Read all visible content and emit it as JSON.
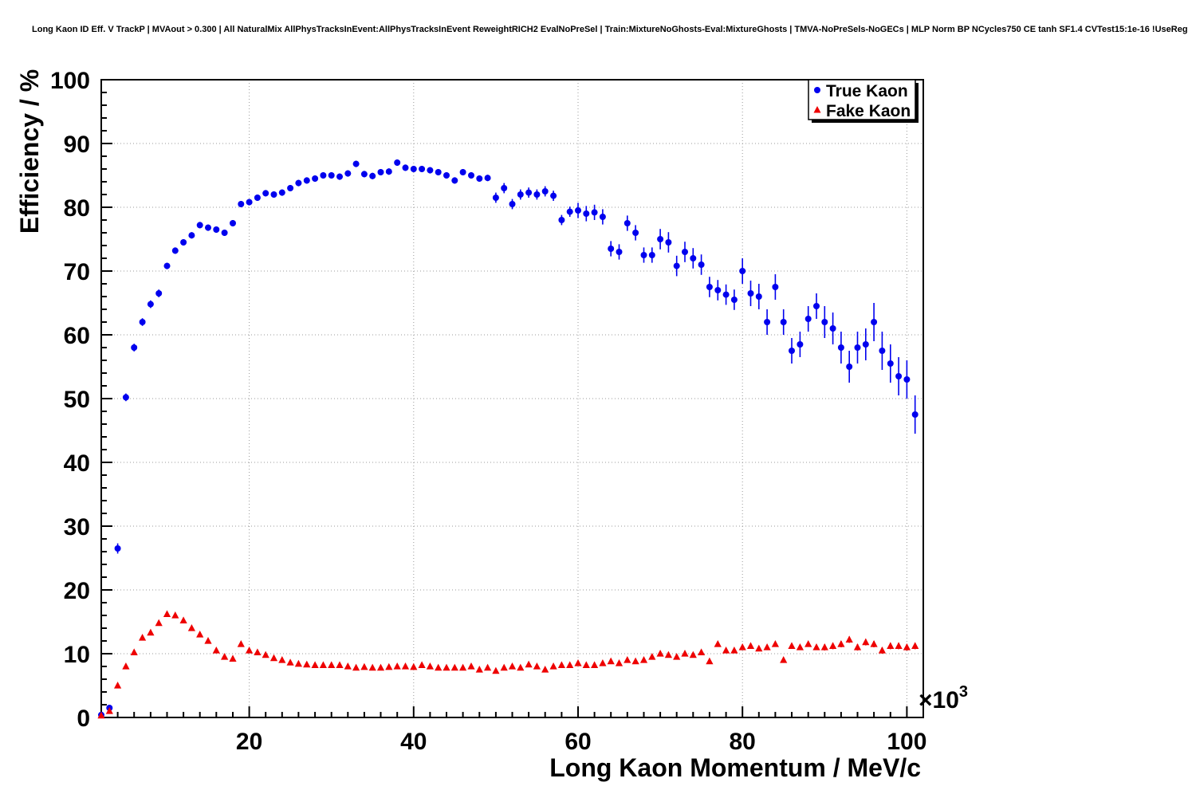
{
  "title": "Long Kaon ID Eff. V TrackP | MVAout > 0.300 | All NaturalMix AllPhysTracksInEvent:AllPhysTracksInEvent ReweightRICH2 EvalNoPreSel | Train:MixtureNoGhosts-Eval:MixtureGhosts | TMVA-NoPreSels-NoGECs | MLP Norm BP NCycles750 CE tanh SF1.4 CVTest15:1e-16 !UseReg",
  "chart_data": {
    "type": "scatter",
    "xlabel": "Long Kaon Momentum / MeV/c",
    "ylabel": "Efficiency / %",
    "x_exponent_label": "×10",
    "x_exponent": "3",
    "xlim": [
      2,
      102
    ],
    "ylim": [
      0,
      100
    ],
    "xticks": [
      20,
      40,
      60,
      80,
      100
    ],
    "yticks": [
      0,
      10,
      20,
      30,
      40,
      50,
      60,
      70,
      80,
      90,
      100
    ],
    "grid": "dotted",
    "legend_position": "top-right",
    "x": [
      2,
      3,
      4,
      5,
      6,
      7,
      8,
      9,
      10,
      11,
      12,
      13,
      14,
      15,
      16,
      17,
      18,
      19,
      20,
      21,
      22,
      23,
      24,
      25,
      26,
      27,
      28,
      29,
      30,
      31,
      32,
      33,
      34,
      35,
      36,
      37,
      38,
      39,
      40,
      41,
      42,
      43,
      44,
      45,
      46,
      47,
      48,
      49,
      50,
      51,
      52,
      53,
      54,
      55,
      56,
      57,
      58,
      59,
      60,
      61,
      62,
      63,
      64,
      65,
      66,
      67,
      68,
      69,
      70,
      71,
      72,
      73,
      74,
      75,
      76,
      77,
      78,
      79,
      80,
      81,
      82,
      83,
      84,
      85,
      86,
      87,
      88,
      89,
      90,
      91,
      92,
      93,
      94,
      95,
      96,
      97,
      98,
      99,
      100,
      101
    ],
    "series": [
      {
        "name": "True Kaon",
        "marker": "circle",
        "color": "#0000ee",
        "values": [
          0.4,
          1.5,
          26.5,
          50.2,
          58.0,
          62.0,
          64.8,
          66.5,
          70.8,
          73.2,
          74.5,
          75.6,
          77.2,
          76.8,
          76.5,
          76.0,
          77.5,
          80.5,
          80.8,
          81.5,
          82.2,
          82.0,
          82.3,
          83.0,
          83.8,
          84.2,
          84.5,
          85.0,
          85.0,
          84.8,
          85.3,
          86.8,
          85.2,
          84.9,
          85.5,
          85.6,
          87.0,
          86.2,
          86.0,
          86.0,
          85.8,
          85.5,
          85.0,
          84.2,
          85.5,
          85.0,
          84.5,
          84.6,
          81.5,
          83.0,
          80.5,
          82.0,
          82.3,
          82.0,
          82.5,
          81.8,
          78.0,
          79.3,
          79.5,
          79.0,
          79.2,
          78.5,
          73.5,
          73.0,
          77.5,
          76.0,
          72.5,
          72.5,
          75.0,
          74.5,
          70.8,
          73.0,
          72.0,
          71.0,
          67.5,
          67.0,
          66.3,
          65.5,
          70.0,
          66.5,
          66.0,
          62.0,
          67.5,
          62.0,
          57.5,
          58.5,
          62.5,
          64.5,
          62.0,
          61.0,
          58.0,
          55.0,
          58.0,
          58.5,
          62.0,
          57.5,
          55.5,
          53.5,
          53.0,
          47.5
        ],
        "yerr": [
          0.3,
          0.3,
          0.8,
          0.6,
          0.6,
          0.6,
          0.6,
          0.6,
          0.5,
          0.5,
          0.5,
          0.5,
          0.5,
          0.5,
          0.5,
          0.5,
          0.5,
          0.5,
          0.5,
          0.5,
          0.5,
          0.5,
          0.5,
          0.5,
          0.5,
          0.5,
          0.5,
          0.5,
          0.5,
          0.5,
          0.5,
          0.5,
          0.5,
          0.5,
          0.5,
          0.5,
          0.5,
          0.5,
          0.5,
          0.5,
          0.5,
          0.5,
          0.5,
          0.5,
          0.5,
          0.5,
          0.5,
          0.5,
          0.8,
          0.8,
          0.8,
          0.8,
          0.8,
          0.8,
          0.8,
          0.8,
          0.8,
          0.8,
          1.2,
          1.2,
          1.2,
          1.2,
          1.2,
          1.2,
          1.2,
          1.2,
          1.2,
          1.2,
          1.6,
          1.6,
          1.6,
          1.6,
          1.6,
          1.6,
          1.6,
          1.6,
          1.6,
          1.6,
          2.0,
          2.0,
          2.0,
          2.0,
          2.0,
          2.0,
          2.0,
          2.0,
          2.0,
          2.0,
          2.5,
          2.5,
          2.5,
          2.5,
          2.5,
          2.5,
          3.0,
          3.0,
          3.0,
          3.0,
          3.0,
          3.0
        ]
      },
      {
        "name": "Fake Kaon",
        "marker": "triangle",
        "color": "#ee0000",
        "values": [
          0.3,
          1.0,
          5.0,
          8.0,
          10.2,
          12.5,
          13.3,
          14.8,
          16.2,
          16.0,
          15.2,
          14.0,
          13.0,
          12.0,
          10.5,
          9.5,
          9.2,
          11.5,
          10.5,
          10.2,
          9.8,
          9.3,
          9.0,
          8.6,
          8.4,
          8.3,
          8.2,
          8.2,
          8.2,
          8.2,
          8.0,
          7.8,
          7.9,
          7.8,
          7.8,
          7.9,
          8.0,
          8.0,
          7.9,
          8.2,
          8.0,
          7.8,
          7.8,
          7.8,
          7.8,
          8.0,
          7.5,
          7.8,
          7.3,
          7.8,
          8.0,
          7.8,
          8.3,
          8.0,
          7.5,
          8.0,
          8.2,
          8.2,
          8.5,
          8.2,
          8.2,
          8.5,
          8.8,
          8.5,
          9.0,
          8.8,
          9.0,
          9.5,
          10.0,
          9.8,
          9.5,
          10.0,
          9.8,
          10.2,
          8.8,
          11.5,
          10.5,
          10.5,
          11.0,
          11.2,
          10.8,
          11.0,
          11.5,
          9.0,
          11.2,
          11.0,
          11.5,
          11.0,
          11.0,
          11.2,
          11.5,
          12.2,
          11.0,
          11.8,
          11.5,
          10.5,
          11.2,
          11.2,
          11.0,
          11.2
        ],
        "yerr": [
          0.2,
          0.2,
          0.2,
          0.2,
          0.2,
          0.2,
          0.2,
          0.2,
          0.3,
          0.3,
          0.3,
          0.3,
          0.3,
          0.3,
          0.3,
          0.3,
          0.3,
          0.3,
          0.3,
          0.3,
          0.3,
          0.3,
          0.3,
          0.3,
          0.3,
          0.3,
          0.3,
          0.3,
          0.3,
          0.3,
          0.3,
          0.3,
          0.3,
          0.3,
          0.3,
          0.3,
          0.3,
          0.3,
          0.3,
          0.3,
          0.3,
          0.3,
          0.3,
          0.3,
          0.3,
          0.3,
          0.3,
          0.3,
          0.3,
          0.3,
          0.3,
          0.3,
          0.3,
          0.3,
          0.3,
          0.3,
          0.3,
          0.3,
          0.4,
          0.4,
          0.4,
          0.4,
          0.4,
          0.4,
          0.4,
          0.4,
          0.4,
          0.4,
          0.4,
          0.4,
          0.4,
          0.4,
          0.4,
          0.4,
          0.4,
          0.4,
          0.4,
          0.4,
          0.4,
          0.4,
          0.4,
          0.4,
          0.4,
          0.4,
          0.4,
          0.4,
          0.4,
          0.4,
          0.5,
          0.5,
          0.5,
          0.5,
          0.5,
          0.5,
          0.5,
          0.5,
          0.5,
          0.5,
          0.5,
          0.5
        ]
      }
    ]
  }
}
